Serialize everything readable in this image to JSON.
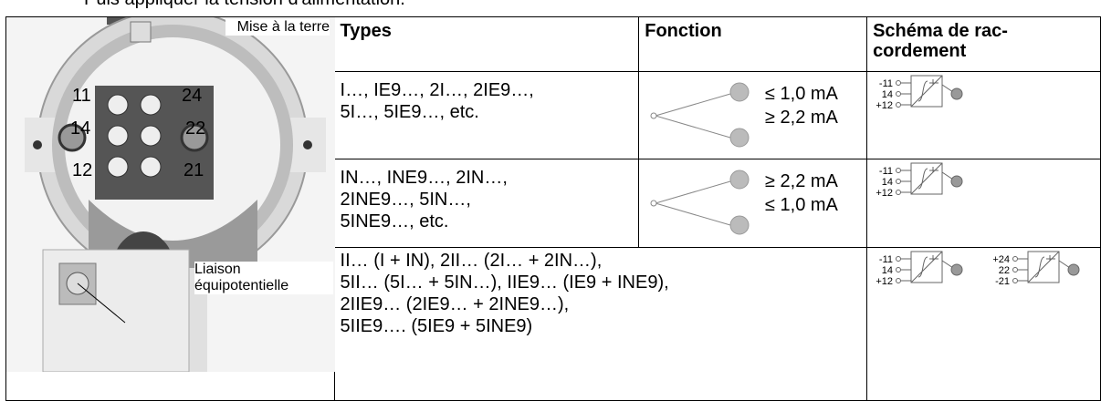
{
  "intro": "Puis appliquer la tension d'alimentation.",
  "image": {
    "label_earth": "Mise à la terre",
    "label_bonding": "Liaison équipotentielle",
    "terminals": [
      "11",
      "24",
      "14",
      "22",
      "12",
      "21"
    ]
  },
  "table": {
    "header": [
      "Types",
      "Fonction",
      "Schéma de rac-cordement"
    ],
    "rows": [
      {
        "types": "I…, IE9…, 2I…, 2IE9…,\n5I…, 5IE9…, etc.",
        "function": [
          "≤ 1,0 mA",
          "≥ 2,2 mA"
        ],
        "schema": [
          "-11",
          "14",
          "+12"
        ]
      },
      {
        "types": "IN…, INE9…, 2IN…,\n2INE9…, 5IN…,\n5INE9…, etc.",
        "function": [
          "≥ 2,2 mA",
          "≤ 1,0 mA"
        ],
        "schema": [
          "-11",
          "14",
          "+12"
        ]
      },
      {
        "types": "II… (I + IN), 2II… (2I… + 2IN…),\n5II… (5I… + 5IN…), IIE9… (IE9 + INE9),\n2IIE9… (2IE9… + 2INE9…),\n5IIE9…. (5IE9 + 5INE9)",
        "schema": [
          "-11",
          "14",
          "+12",
          "+24",
          "22",
          "-21"
        ]
      }
    ]
  }
}
